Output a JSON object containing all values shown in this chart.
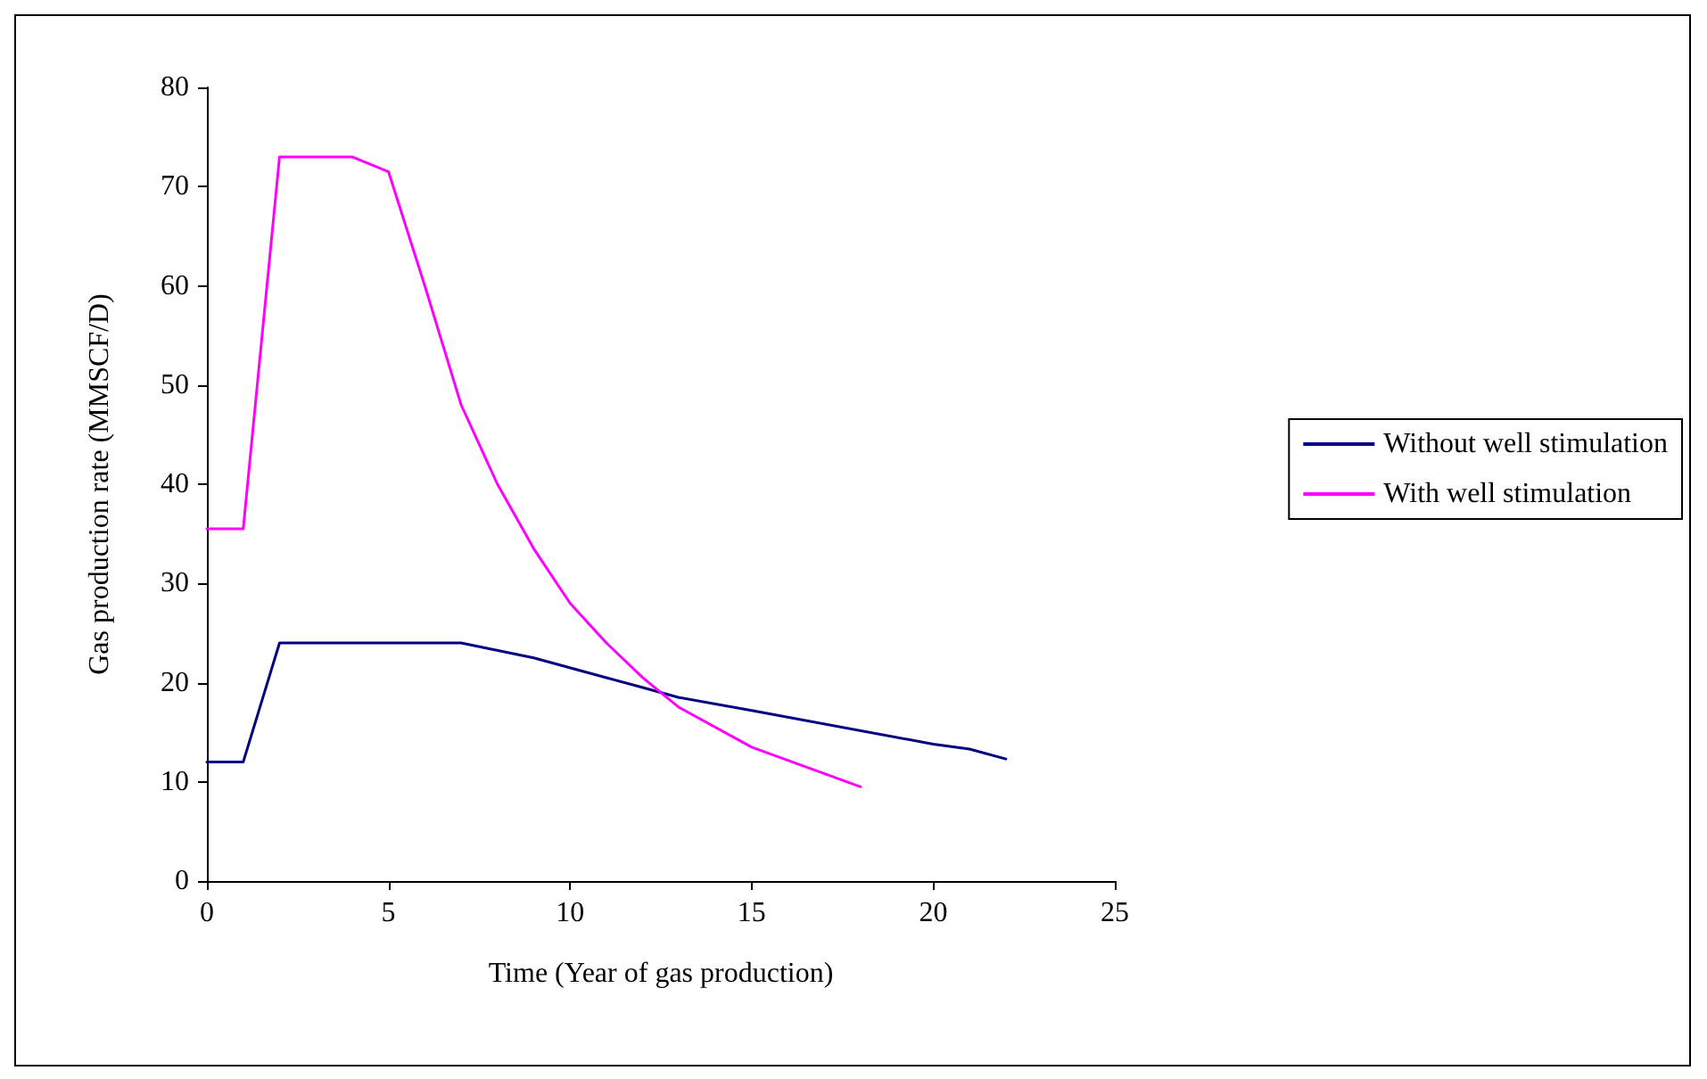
{
  "chart_data": {
    "type": "line",
    "xlabel": "Time (Year of gas production)",
    "ylabel": "Gas production rate (MMSCF/D)",
    "xlim": [
      0,
      25
    ],
    "xticks": [
      0,
      5,
      10,
      15,
      20,
      25
    ],
    "ylim": [
      0,
      80
    ],
    "yticks": [
      0,
      10,
      20,
      30,
      40,
      50,
      60,
      70,
      80
    ],
    "grid": false,
    "legend": "right",
    "marker": "none",
    "line_style": "solid",
    "series": [
      {
        "name": "Without well stimulation",
        "color": "#000080",
        "x": [
          0,
          1,
          2,
          7,
          9,
          11,
          12,
          13,
          15,
          20,
          21,
          22
        ],
        "values": [
          12,
          12,
          24,
          24,
          22.5,
          20.5,
          19.5,
          18.5,
          17.2,
          13.8,
          13.3,
          12.3
        ]
      },
      {
        "name": "With well stimulation",
        "color": "#ff00ff",
        "x": [
          0,
          1,
          2,
          4,
          5,
          6,
          7,
          8,
          9,
          10,
          11,
          12,
          13,
          15,
          18
        ],
        "values": [
          35.5,
          35.5,
          73,
          73,
          71.5,
          60,
          48,
          40,
          33.5,
          28,
          24,
          20.5,
          17.5,
          13.5,
          9.5
        ]
      }
    ]
  }
}
